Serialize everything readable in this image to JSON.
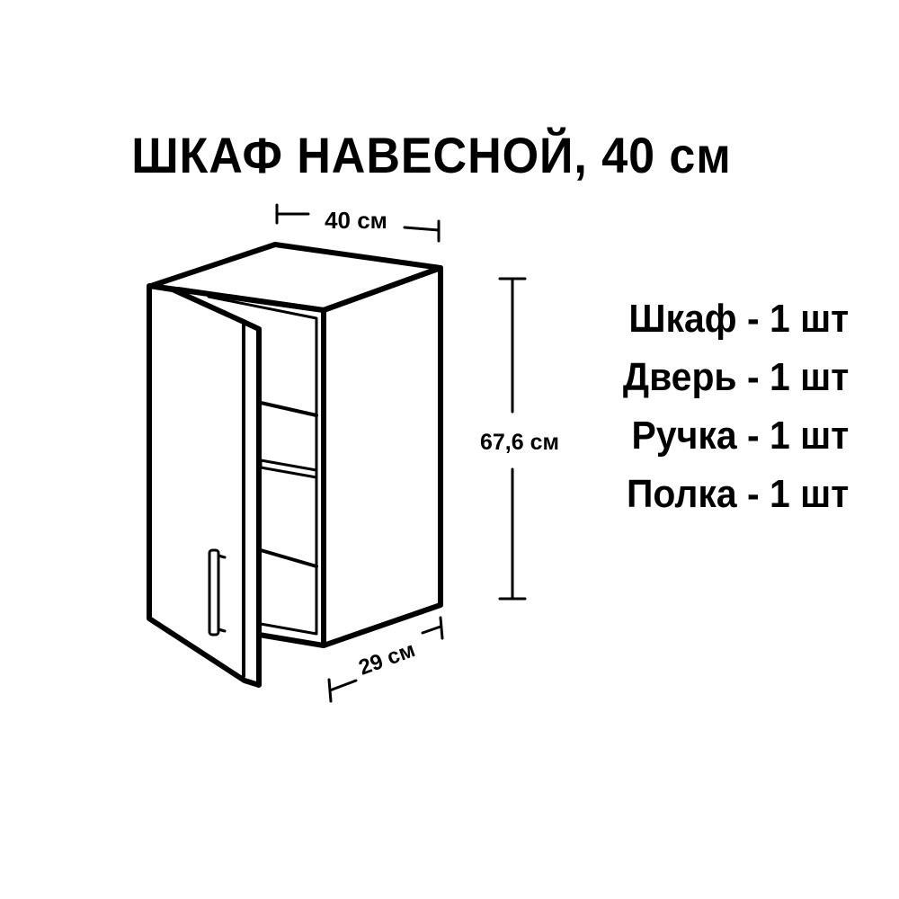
{
  "title": "ШКАФ НАВЕСНОЙ, 40 см",
  "dimensions": {
    "width": "40 см",
    "height": "67,6 см",
    "depth": "29 см"
  },
  "parts": [
    {
      "label": "Шкаф - 1 шт"
    },
    {
      "label": "Дверь - 1 шт"
    },
    {
      "label": "Ручка - 1 шт"
    },
    {
      "label": "Полка - 1 шт"
    }
  ]
}
